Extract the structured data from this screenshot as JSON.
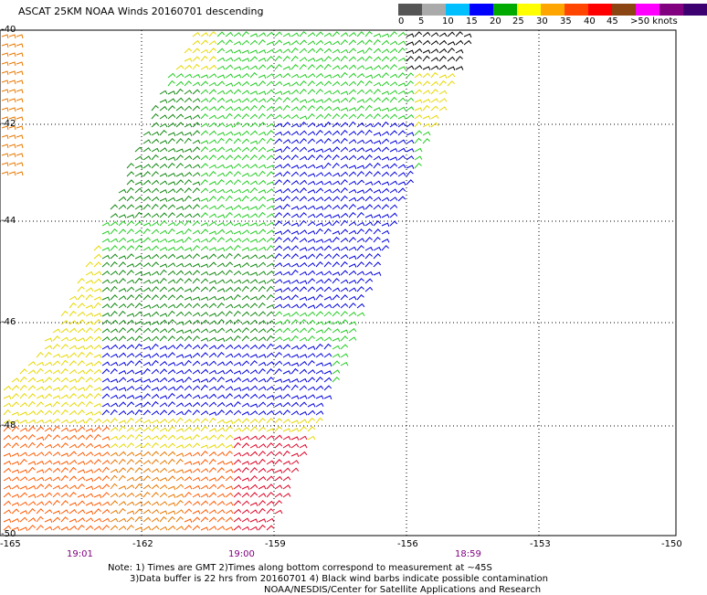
{
  "title": "ASCAT 25KM NOAA Winds 20160701 descending",
  "legend": {
    "colors": [
      "#555555",
      "#aaaaaa",
      "#00bfff",
      "#0000ff",
      "#00aa00",
      "#ffff00",
      "#ffa500",
      "#ff4500",
      "#ff0000",
      "#8b4513",
      "#ff00ff",
      "#800080",
      "#3c0070"
    ],
    "labels": [
      "0",
      "5",
      "10",
      "15",
      "20",
      "25",
      "30",
      "35",
      "40",
      "45",
      ">50 knots"
    ]
  },
  "axes": {
    "lat_labels": [
      "-40",
      "-42",
      "-44",
      "-46",
      "-48",
      "-50"
    ],
    "lon_labels": [
      "-165",
      "-162",
      "-159",
      "-156",
      "-153",
      "-150"
    ]
  },
  "times": [
    "19:01",
    "19:00",
    "18:59"
  ],
  "notes": [
    "Note: 1) Times are GMT 2)Times along bottom correspond to measurement at ~45S",
    "3)Data buffer is 22 hrs from 20160701 4) Black wind barbs indicate possible contamination",
    "NOAA/NESDIS/Center for Satellite Applications and Research"
  ],
  "wind_palette": {
    "yellow": "#e6d800",
    "green_light": "#22cc22",
    "green_dark": "#118811",
    "blue": "#0000dd",
    "orange": "#e87800",
    "orange_red": "#ff5a00",
    "red": "#dd0022",
    "brown": "#996644",
    "black": "#000000"
  }
}
